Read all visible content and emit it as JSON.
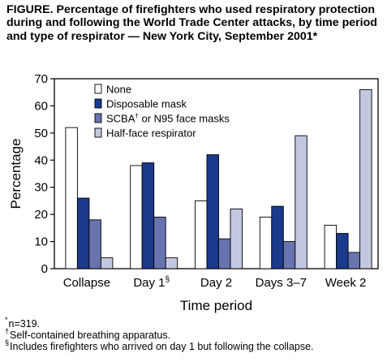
{
  "figure": {
    "title": "FIGURE. Percentage of firefighters who used respiratory protection during and following the World Trade Center attacks, by time period and type of respirator — New York City, September 2001*"
  },
  "chart_data": {
    "type": "bar",
    "categories": [
      "Collapse",
      "Day 1",
      "Day 2",
      "Days 3–7",
      "Week 2"
    ],
    "category_marks": [
      "",
      "§",
      "",
      "",
      ""
    ],
    "series": [
      {
        "name": "None",
        "mark": "",
        "name_suffix": "",
        "values": [
          52,
          38,
          25,
          19,
          16
        ],
        "color": "#ffffff"
      },
      {
        "name": "Disposable mask",
        "mark": "",
        "name_suffix": "",
        "values": [
          26,
          39,
          42,
          23,
          13
        ],
        "color": "#1b3a8c"
      },
      {
        "name": "SCBA",
        "mark": "†",
        "name_suffix": " or N95 face masks",
        "values": [
          18,
          19,
          11,
          10,
          6
        ],
        "color": "#6874b0"
      },
      {
        "name": "Half-face respirator",
        "mark": "",
        "name_suffix": "",
        "values": [
          4,
          4,
          22,
          49,
          66
        ],
        "color": "#c3c8e0"
      }
    ],
    "xlabel": "Time period",
    "ylabel": "Percentage",
    "ylim": [
      0,
      70
    ],
    "yticks": [
      0,
      10,
      20,
      30,
      40,
      50,
      60,
      70
    ],
    "grid": false,
    "legend_position": "top-left"
  },
  "footnotes": [
    {
      "mark": "*",
      "text": "n=319."
    },
    {
      "mark": "†",
      "text": "Self-contained breathing apparatus."
    },
    {
      "mark": "§",
      "text": "Includes firefighters who arrived on day 1 but following the collapse."
    }
  ]
}
